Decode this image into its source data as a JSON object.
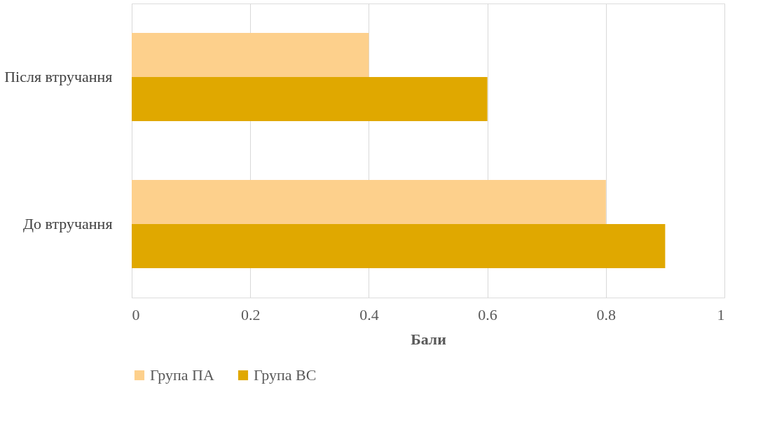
{
  "chart_data": {
    "type": "bar",
    "orientation": "horizontal",
    "xlabel": "Бали",
    "categories": [
      "Після втручання",
      "До втручання"
    ],
    "series": [
      {
        "name": "Група ПА",
        "color": "#fdd08c",
        "values": [
          0.4,
          0.8
        ]
      },
      {
        "name": "Група ВС",
        "color": "#e0a800",
        "values": [
          0.6,
          0.9
        ]
      }
    ],
    "xlim": [
      0,
      1
    ],
    "xticks": [
      0,
      0.2,
      0.4,
      0.6,
      0.8,
      1
    ],
    "grid": "x",
    "legend": "bottom"
  }
}
